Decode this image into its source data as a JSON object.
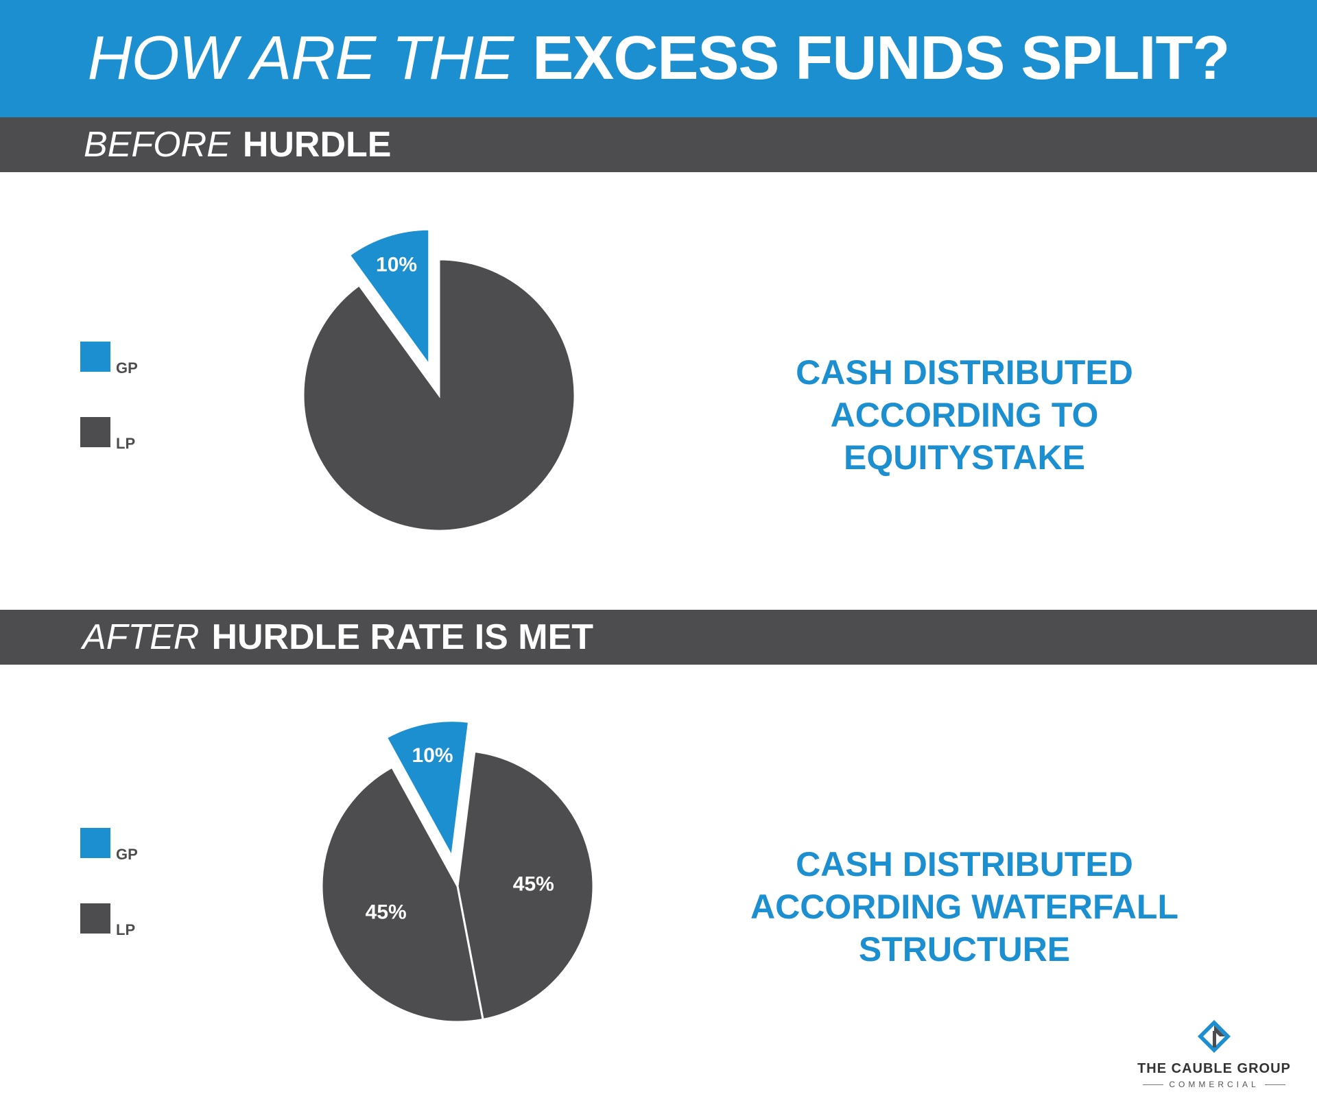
{
  "title": {
    "light": "HOW ARE THE",
    "bold": "EXCESS FUNDS SPLIT?"
  },
  "sections": [
    {
      "light": "BEFORE",
      "bold": "HURDLE",
      "caption": [
        "CASH DISTRIBUTED",
        "ACCORDING TO",
        "EQUITYSTAKE"
      ]
    },
    {
      "light": "AFTER",
      "bold": "HURDLE RATE IS MET",
      "caption": [
        "CASH DISTRIBUTED",
        "ACCORDING WATERFALL",
        "STRUCTURE"
      ]
    }
  ],
  "legend": [
    {
      "label": "GP",
      "color": "#1c8fd0"
    },
    {
      "label": "LP",
      "color": "#4d4d4f"
    }
  ],
  "logo": {
    "name": "THE CAUBLE GROUP",
    "sub": "COMMERCIAL"
  },
  "chart_data": [
    {
      "type": "pie",
      "title": "BEFORE HURDLE",
      "slices": [
        {
          "name": "GP",
          "value": 10,
          "label": "10%",
          "exploded": true,
          "color": "#1c8fd0"
        },
        {
          "name": "LP",
          "value": 90,
          "label": "",
          "exploded": false,
          "color": "#4d4d4f"
        }
      ]
    },
    {
      "type": "pie",
      "title": "AFTER HURDLE RATE IS MET",
      "slices": [
        {
          "name": "GP",
          "value": 10,
          "label": "10%",
          "exploded": true,
          "color": "#1c8fd0"
        },
        {
          "name": "LP",
          "value": 45,
          "label": "45%",
          "exploded": false,
          "color": "#4d4d4f"
        },
        {
          "name": "LP",
          "value": 45,
          "label": "45%",
          "exploded": false,
          "color": "#4d4d4f"
        }
      ]
    }
  ]
}
